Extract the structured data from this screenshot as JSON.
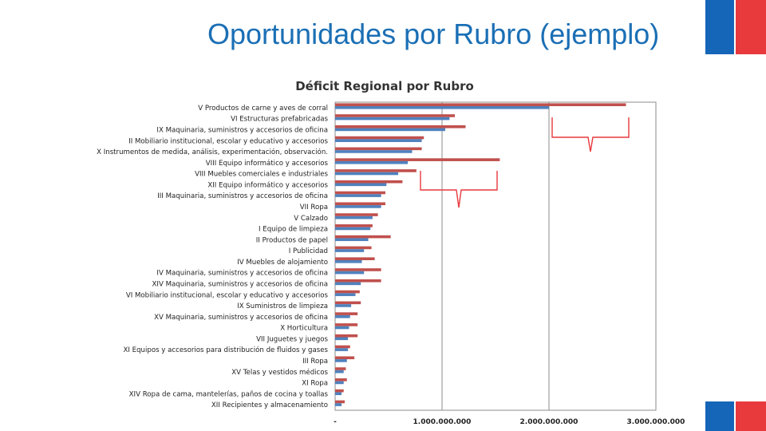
{
  "slide": {
    "title": "Oportunidades por Rubro (ejemplo)"
  },
  "colors": {
    "title": "#1b6fb5",
    "flag_blue": "#1565b8",
    "flag_red": "#e8393d",
    "series_red": "#c0504d",
    "series_blue": "#4f81bd",
    "bracket": "#e8393d"
  },
  "chart_data": {
    "type": "bar",
    "orientation": "horizontal",
    "title": "Déficit Regional por Rubro",
    "categories": [
      "V  Productos de carne y aves de corral",
      "VI  Estructuras prefabricadas",
      "IX  Maquinaria, suministros y accesorios de oficina",
      "II  Mobiliario institucional, escolar y educativo y accesorios",
      "X  Instrumentos de medida, análisis, experimentación, observación.",
      "VIII  Equipo informático y accesorios",
      "VIII  Muebles comerciales e industriales",
      "XII  Equipo informático y accesorios",
      "III  Maquinaria, suministros y accesorios de oficina",
      "VII  Ropa",
      "V  Calzado",
      "I  Equipo de limpieza",
      "II  Productos de papel",
      "I  Publicidad",
      "IV  Muebles de alojamiento",
      "IV  Maquinaria, suministros y accesorios de oficina",
      "XIV  Maquinaria, suministros y accesorios de oficina",
      "VI  Mobiliario institucional, escolar y educativo y accesorios",
      "IX  Suministros de limpieza",
      "XV  Maquinaria, suministros y accesorios de oficina",
      "X  Horticultura",
      "VII  Juguetes y juegos",
      "XI  Equipos y accesorios para distribución de fluidos y gases",
      "III  Ropa",
      "XV  Telas y vestidos médicos",
      "XI  Ropa",
      "XIV  Ropa de cama, mantelerías, paños de cocina y toallas",
      "XII  Recipientes y almacenamiento"
    ],
    "series": [
      {
        "color": "#c0504d",
        "values": [
          2720000000,
          1120000000,
          1220000000,
          830000000,
          810000000,
          1540000000,
          760000000,
          630000000,
          470000000,
          470000000,
          400000000,
          350000000,
          520000000,
          340000000,
          370000000,
          430000000,
          430000000,
          230000000,
          240000000,
          210000000,
          210000000,
          210000000,
          140000000,
          180000000,
          100000000,
          110000000,
          80000000,
          90000000
        ]
      },
      {
        "color": "#4f81bd",
        "values": [
          2000000000,
          1070000000,
          1030000000,
          810000000,
          720000000,
          680000000,
          590000000,
          480000000,
          430000000,
          430000000,
          350000000,
          330000000,
          310000000,
          270000000,
          250000000,
          270000000,
          240000000,
          190000000,
          150000000,
          140000000,
          130000000,
          120000000,
          120000000,
          110000000,
          80000000,
          80000000,
          60000000,
          60000000
        ]
      }
    ],
    "xlim": [
      0,
      3000000000
    ],
    "xticks": [
      0,
      1000000000,
      2000000000,
      3000000000
    ],
    "xtick_labels": [
      "-",
      "1.000.000.000",
      "2.000.000.000",
      "3.000.000.000"
    ],
    "grid": "vertical",
    "legend": "none"
  }
}
